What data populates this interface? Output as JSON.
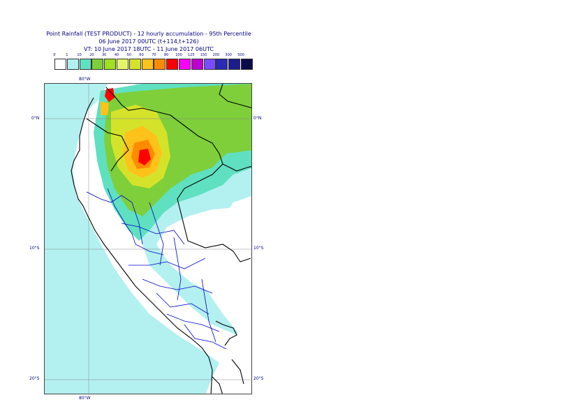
{
  "title": {
    "line1": "Point Rainfall (TEST PRODUCT) - 12 hourly accumulation - 95th Percentile",
    "line2": "06 June 2017 00UTC (t+114,t+126)",
    "line3": "VT: 10 June 2017 18UTC - 11 June 2017 06UTC"
  },
  "legend": {
    "ticks": [
      "0",
      "1",
      "10",
      "20",
      "30",
      "40",
      "50",
      "60",
      "70",
      "80",
      "100",
      "125",
      "150",
      "200",
      "300",
      "500"
    ],
    "colors": [
      "#ffffff",
      "#b3f0f0",
      "#5fe0c0",
      "#7ecf3a",
      "#9fe01f",
      "#e5f56a",
      "#d4e32a",
      "#ffc21a",
      "#ff8c00",
      "#ff0000",
      "#ff00ff",
      "#c000d0",
      "#7a4cff",
      "#2a2ab8",
      "#1c1c8c",
      "#0b0b4a"
    ]
  },
  "axes": {
    "top_lon": "80°W",
    "bottom_lon": "80°W",
    "lat_0_left": "0°N",
    "lat_0_right": "0°N",
    "lat_10_left": "10°S",
    "lat_10_right": "10°S",
    "lat_20_left": "20°S",
    "lat_20_right": "20°S"
  },
  "map_colors": {
    "ocean_light": "#b3f0f0",
    "teal": "#5fe0c0",
    "green": "#7ecf3a",
    "lime": "#9fe01f",
    "yellow": "#d4e32a",
    "orange": "#ffc21a",
    "dark_orange": "#ff8c00",
    "red": "#ff0000",
    "border_country": "#000000",
    "border_region": "#0000cc",
    "grid": "#888888"
  }
}
